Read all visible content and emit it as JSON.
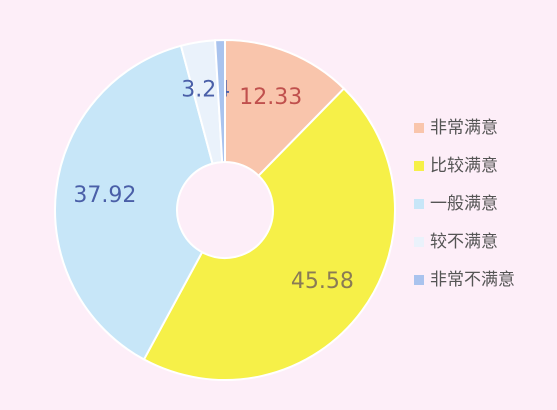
{
  "chart_data": {
    "type": "pie",
    "categories": [
      "非常满意",
      "比较满意",
      "一般满意",
      "较不满意",
      "非常不满意"
    ],
    "values": [
      12.33,
      45.58,
      37.92,
      3.24,
      0.93
    ],
    "colors": [
      "#f9c5ac",
      "#f6f048",
      "#c7e6f8",
      "#eaf2fb",
      "#a9c3ee"
    ],
    "legend": "right"
  }
}
